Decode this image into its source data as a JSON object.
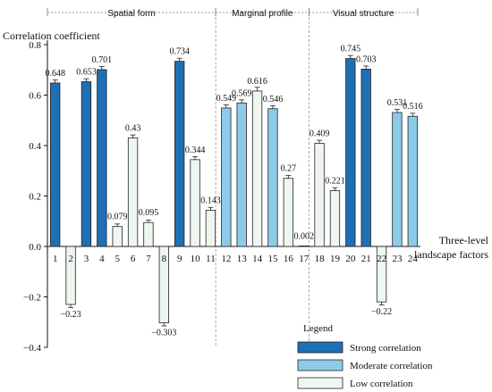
{
  "chart_data": {
    "type": "bar",
    "ylabel": "Correlation coefficient",
    "xlabel": "Three-level landscape factors",
    "ylim": [
      -0.4,
      0.8
    ],
    "yticks": [
      -0.4,
      -0.2,
      0.0,
      0.2,
      0.4,
      0.6,
      0.8
    ],
    "categories": [
      "1",
      "2",
      "3",
      "4",
      "5",
      "6",
      "7",
      "8",
      "9",
      "10",
      "11",
      "12",
      "13",
      "14",
      "15",
      "16",
      "17",
      "18",
      "19",
      "20",
      "21",
      "22",
      "23",
      "24"
    ],
    "values": [
      0.648,
      -0.23,
      0.653,
      0.701,
      0.079,
      0.43,
      0.095,
      -0.303,
      0.734,
      0.344,
      0.143,
      0.549,
      0.569,
      0.616,
      0.546,
      0.27,
      0.002,
      0.409,
      0.221,
      0.745,
      0.703,
      -0.22,
      0.531,
      0.516
    ],
    "value_labels": [
      "0.648",
      "−0.23",
      "0.653",
      "0.701",
      "0.079",
      "0.43",
      "0.095",
      "−0.303",
      "0.734",
      "0.344",
      "0.143",
      "0.549",
      "0.569",
      "0.616",
      "0.546",
      "0.27",
      "0.002",
      "0.409",
      "0.221",
      "0.745",
      "0.703",
      "−0.22",
      "0.531",
      "0.516"
    ],
    "classes": [
      "strong",
      "low",
      "strong",
      "strong",
      "low",
      "low",
      "low",
      "low",
      "strong",
      "low",
      "low",
      "moderate",
      "moderate",
      "low",
      "moderate",
      "low",
      "low",
      "low",
      "low",
      "strong",
      "strong",
      "low",
      "moderate",
      "moderate"
    ],
    "errors": [
      0.012,
      0.012,
      0.012,
      0.012,
      0.01,
      0.012,
      0.01,
      0.012,
      0.012,
      0.012,
      0.012,
      0.012,
      0.012,
      0.015,
      0.012,
      0.012,
      0.0,
      0.012,
      0.012,
      0.012,
      0.012,
      0.012,
      0.012,
      0.012
    ],
    "groups": [
      {
        "label": "Spatial form",
        "from": 1,
        "to": 11
      },
      {
        "label": "Marginal profile",
        "from": 12,
        "to": 17
      },
      {
        "label": "Visual structure",
        "from": 18,
        "to": 24
      }
    ],
    "legend": {
      "title": "Legend",
      "placement": "bottom-right",
      "items": [
        {
          "key": "strong",
          "label": "Strong correlation"
        },
        {
          "key": "moderate",
          "label": "Moderate correlation"
        },
        {
          "key": "low",
          "label": "Low correlation"
        }
      ]
    },
    "colors": {
      "strong": "#1f6fb5",
      "moderate": "#8ccbe8",
      "low": "#eef7ef",
      "edge": "#222222"
    },
    "grid": false
  }
}
